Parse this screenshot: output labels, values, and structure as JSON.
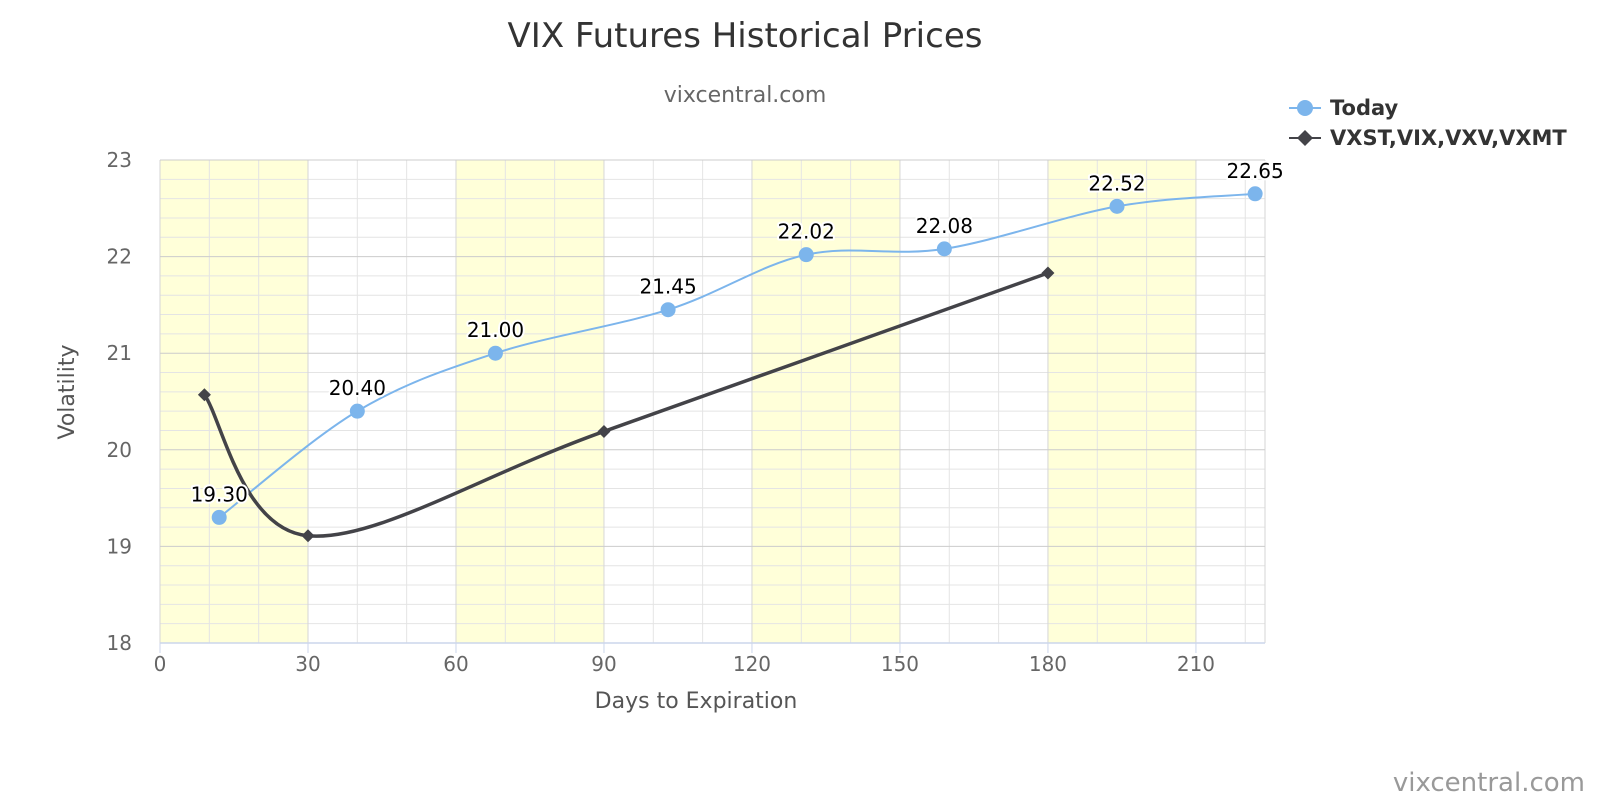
{
  "chart_data": {
    "type": "line",
    "title": "VIX Futures Historical Prices",
    "subtitle": "vixcentral.com",
    "xlabel": "Days to Expiration",
    "ylabel": "Volatility",
    "credit": "vixcentral.com",
    "xlim": [
      0,
      224
    ],
    "ylim": [
      18,
      23
    ],
    "x_ticks": [
      0,
      30,
      60,
      90,
      120,
      150,
      180,
      210
    ],
    "y_ticks": [
      18,
      19,
      20,
      21,
      22,
      23
    ],
    "x_minor_step": 10,
    "y_minor_step": 0.2,
    "plot_bands": [
      [
        0,
        30
      ],
      [
        60,
        90
      ],
      [
        120,
        150
      ],
      [
        180,
        210
      ]
    ],
    "grid": true,
    "legend_position": "top-right",
    "series": [
      {
        "name": "Today",
        "color": "#7cb5ec",
        "marker": "circle",
        "data_labels": true,
        "x": [
          12,
          40,
          68,
          103,
          131,
          159,
          194,
          222
        ],
        "values": [
          19.3,
          20.4,
          21.0,
          21.45,
          22.02,
          22.08,
          22.52,
          22.65
        ],
        "labels": [
          "19.30",
          "20.40",
          "21.00",
          "21.45",
          "22.02",
          "22.08",
          "22.52",
          "22.65"
        ]
      },
      {
        "name": "VXST,VIX,VXV,VXMT",
        "color": "#434348",
        "marker": "diamond",
        "data_labels": false,
        "x": [
          9,
          30,
          90,
          180
        ],
        "values": [
          20.57,
          19.11,
          20.19,
          21.83
        ]
      }
    ]
  }
}
